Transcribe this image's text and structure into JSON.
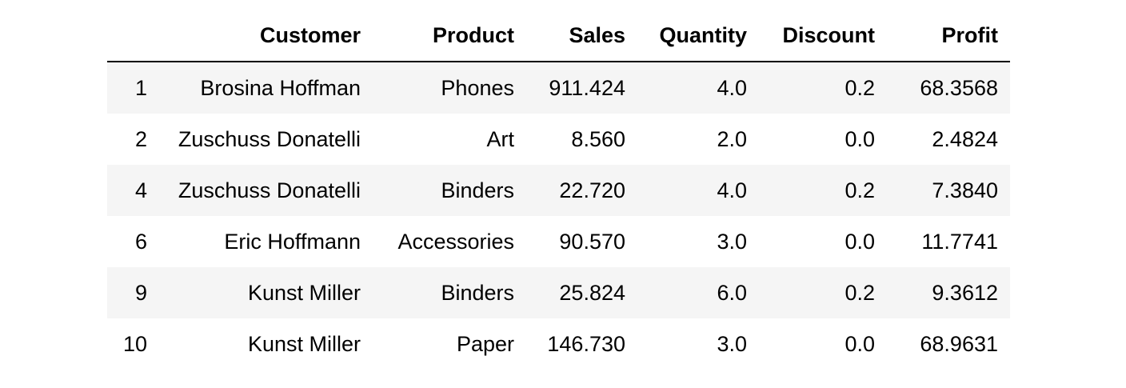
{
  "chart_data": {
    "type": "table",
    "index_header": "",
    "columns": [
      "Customer",
      "Product",
      "Sales",
      "Quantity",
      "Discount",
      "Profit"
    ],
    "rows": [
      {
        "index": "1",
        "cells": [
          "Brosina Hoffman",
          "Phones",
          "911.424",
          "4.0",
          "0.2",
          "68.3568"
        ]
      },
      {
        "index": "2",
        "cells": [
          "Zuschuss Donatelli",
          "Art",
          "8.560",
          "2.0",
          "0.0",
          "2.4824"
        ]
      },
      {
        "index": "4",
        "cells": [
          "Zuschuss Donatelli",
          "Binders",
          "22.720",
          "4.0",
          "0.2",
          "7.3840"
        ]
      },
      {
        "index": "6",
        "cells": [
          "Eric Hoffmann",
          "Accessories",
          "90.570",
          "3.0",
          "0.0",
          "11.7741"
        ]
      },
      {
        "index": "9",
        "cells": [
          "Kunst Miller",
          "Binders",
          "25.824",
          "6.0",
          "0.2",
          "9.3612"
        ]
      },
      {
        "index": "10",
        "cells": [
          "Kunst Miller",
          "Paper",
          "146.730",
          "3.0",
          "0.0",
          "68.9631"
        ]
      }
    ]
  }
}
